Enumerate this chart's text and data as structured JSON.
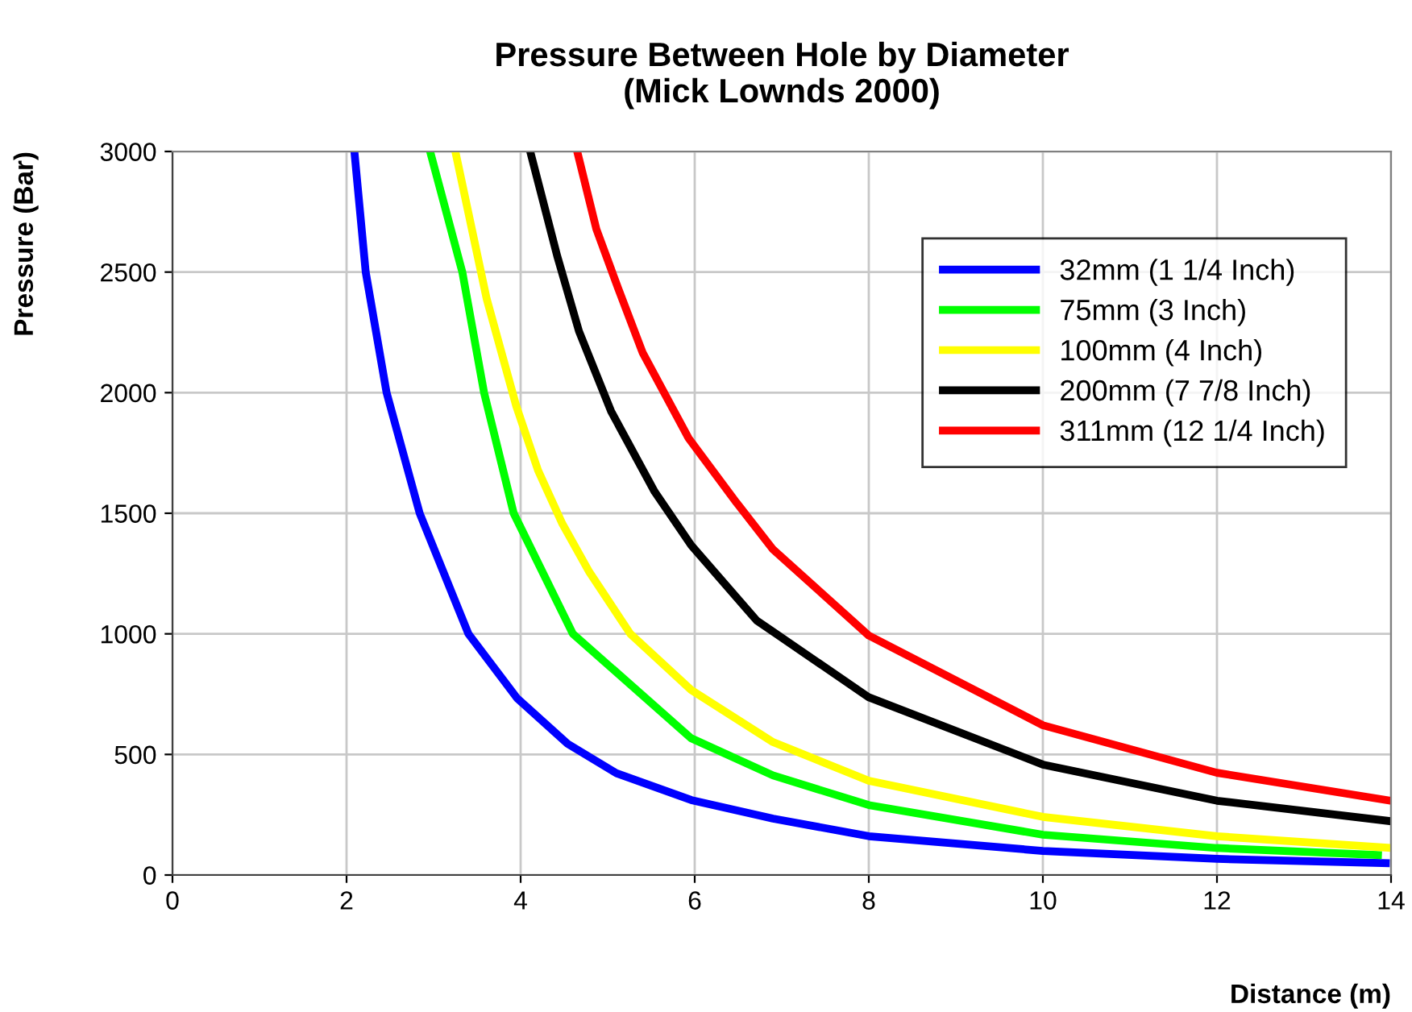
{
  "chart_data": {
    "type": "line",
    "title": "Pressure Between Hole by Diameter\n(Mick Lownds 2000)",
    "xlabel": "Distance (m)",
    "ylabel": "Pressure (Bar)",
    "xlim": [
      0,
      14
    ],
    "xticks": [
      0,
      2,
      4,
      6,
      8,
      10,
      12,
      14
    ],
    "ylim": [
      0,
      3000
    ],
    "yticks": [
      0,
      500,
      1000,
      1500,
      2000,
      2500,
      3000
    ],
    "grid": true,
    "legend": "top right",
    "marker": "none",
    "line_style": "solid",
    "series": [
      {
        "name": "32mm (1 1/4 Inch)",
        "color": "#0000ff",
        "x": [
          2.09,
          2.22,
          2.46,
          2.84,
          3.4,
          3.96,
          4.54,
          5.1,
          5.96,
          6.9,
          8,
          10,
          12,
          13.94
        ],
        "values": [
          3000,
          2500,
          2000,
          1500,
          1000,
          733,
          544,
          422,
          311,
          234,
          161,
          100,
          67,
          49
        ]
      },
      {
        "name": "75mm (3 Inch)",
        "color": "#00ff00",
        "x": [
          2.96,
          3.33,
          3.58,
          3.92,
          4.6,
          5.96,
          6.9,
          8,
          10,
          12,
          13.85
        ],
        "values": [
          3000,
          2500,
          2000,
          1500,
          1000,
          567,
          413,
          290,
          167,
          112,
          83
        ]
      },
      {
        "name": "100mm (4 Inch)",
        "color": "#ffff00",
        "x": [
          3.25,
          3.61,
          3.95,
          4.2,
          4.48,
          4.79,
          5.26,
          5.96,
          6.9,
          8,
          10,
          12,
          14
        ],
        "values": [
          3000,
          2389,
          1944,
          1678,
          1456,
          1256,
          1000,
          767,
          551,
          391,
          241,
          161,
          112
        ]
      },
      {
        "name": "200mm (7 7/8 Inch)",
        "color": "#000000",
        "x": [
          4.11,
          4.42,
          4.67,
          5.04,
          5.54,
          5.96,
          6.71,
          6.9,
          8,
          10,
          12,
          14
        ],
        "values": [
          3000,
          2567,
          2255,
          1922,
          1589,
          1367,
          1056,
          1009,
          737,
          458,
          308,
          223
        ]
      },
      {
        "name": "311mm (12 1/4 Inch)",
        "color": "#ff0000",
        "x": [
          4.65,
          4.87,
          5.12,
          5.4,
          5.93,
          6.48,
          6.9,
          8,
          10,
          12,
          14
        ],
        "values": [
          3000,
          2678,
          2433,
          2167,
          1811,
          1544,
          1350,
          993,
          621,
          424,
          308
        ]
      }
    ]
  }
}
